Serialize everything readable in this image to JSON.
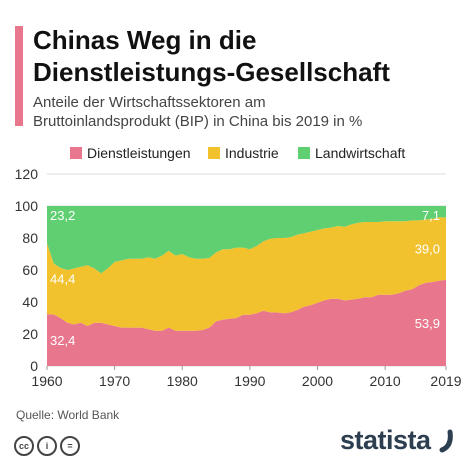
{
  "header": {
    "title_line1": "Chinas Weg in die",
    "title_line2": "Dienstleistungs-Gesellschaft",
    "subtitle_line1": "Anteile der Wirtschaftssektoren am",
    "subtitle_line2": "Bruttoinlandsprodukt (BIP) in China bis 2019 in %"
  },
  "footer": {
    "source": "Quelle: World Bank",
    "license_icons": [
      "cc",
      "i",
      "="
    ],
    "brand": "statista"
  },
  "colors": {
    "Dienstleistungen": "#e8778d",
    "Industrie": "#f2c12e",
    "Landwirtschaft": "#5fcf72",
    "grid": "#dddddd",
    "axis_text": "#333333",
    "accent": "#e8778d",
    "brand": "#2d3e50"
  },
  "chart_data": {
    "type": "area",
    "stacked": true,
    "title": "Chinas Weg in die Dienstleistungs-Gesellschaft",
    "subtitle": "Anteile der Wirtschaftssektoren am Bruttoinlandsprodukt (BIP) in China bis 2019 in %",
    "xlabel": "",
    "ylabel": "",
    "xlim": [
      1960,
      2019
    ],
    "ylim": [
      0,
      120
    ],
    "x_ticks": [
      1960,
      1970,
      1980,
      1990,
      2000,
      2010,
      2019
    ],
    "y_ticks": [
      0,
      20,
      40,
      60,
      80,
      100,
      120
    ],
    "grid": true,
    "legend_position": "top",
    "x": [
      1960,
      1961,
      1962,
      1963,
      1964,
      1965,
      1966,
      1967,
      1968,
      1969,
      1970,
      1971,
      1972,
      1973,
      1974,
      1975,
      1976,
      1977,
      1978,
      1979,
      1980,
      1981,
      1982,
      1983,
      1984,
      1985,
      1986,
      1987,
      1988,
      1989,
      1990,
      1991,
      1992,
      1993,
      1994,
      1995,
      1996,
      1997,
      1998,
      1999,
      2000,
      2001,
      2002,
      2003,
      2004,
      2005,
      2006,
      2007,
      2008,
      2009,
      2010,
      2011,
      2012,
      2013,
      2014,
      2015,
      2016,
      2017,
      2018,
      2019
    ],
    "series": [
      {
        "name": "Dienstleistungen",
        "values": [
          32.4,
          32.2,
          30.0,
          27.0,
          26.0,
          27.0,
          25.0,
          27.0,
          27.0,
          26.0,
          25.0,
          24.0,
          24.0,
          24.0,
          24.0,
          23.0,
          22.0,
          22.0,
          24.0,
          22.0,
          22.0,
          22.0,
          22.0,
          22.5,
          24.0,
          28.0,
          29.0,
          29.5,
          30.0,
          32.0,
          32.0,
          33.0,
          34.5,
          33.5,
          33.5,
          33.0,
          33.5,
          35.0,
          37.0,
          38.0,
          39.5,
          41.0,
          42.0,
          42.0,
          41.0,
          41.5,
          42.0,
          43.0,
          43.0,
          44.5,
          44.5,
          44.5,
          45.5,
          47.0,
          48.0,
          50.5,
          52.0,
          52.5,
          53.3,
          53.9
        ]
      },
      {
        "name": "Industrie",
        "values": [
          44.4,
          31.9,
          31.3,
          33.0,
          35.0,
          35.0,
          38.0,
          34.0,
          31.0,
          35.0,
          40.0,
          42.0,
          43.0,
          43.0,
          43.0,
          45.0,
          45.0,
          47.0,
          48.0,
          47.0,
          48.0,
          46.0,
          45.0,
          44.5,
          43.5,
          43.0,
          44.0,
          43.5,
          44.0,
          42.0,
          41.0,
          42.0,
          43.5,
          46.0,
          46.5,
          47.0,
          47.0,
          47.0,
          46.0,
          46.0,
          45.5,
          45.0,
          44.5,
          45.5,
          46.0,
          47.0,
          47.5,
          47.0,
          47.0,
          45.5,
          46.0,
          46.0,
          45.0,
          43.5,
          43.0,
          40.5,
          39.5,
          39.5,
          39.7,
          39.0
        ]
      },
      {
        "name": "Landwirtschaft",
        "values": [
          23.2,
          35.9,
          38.7,
          40.0,
          39.0,
          38.0,
          37.0,
          39.0,
          42.0,
          39.0,
          35.0,
          34.0,
          33.0,
          33.0,
          33.0,
          32.0,
          33.0,
          31.0,
          28.0,
          31.0,
          30.0,
          32.0,
          33.0,
          33.0,
          32.5,
          29.0,
          27.0,
          27.0,
          26.0,
          26.0,
          27.0,
          25.0,
          22.0,
          20.5,
          20.0,
          20.0,
          19.5,
          18.0,
          17.0,
          16.0,
          15.0,
          14.0,
          13.5,
          12.5,
          13.0,
          11.5,
          10.5,
          10.0,
          10.0,
          10.0,
          9.5,
          9.5,
          9.5,
          9.5,
          9.0,
          9.0,
          8.5,
          8.0,
          7.0,
          7.1
        ]
      }
    ],
    "data_labels": [
      {
        "series": "Landwirtschaft",
        "x": 1960,
        "text": "23,2"
      },
      {
        "series": "Industrie",
        "x": 1960,
        "text": "44,4"
      },
      {
        "series": "Dienstleistungen",
        "x": 1960,
        "text": "32,4"
      },
      {
        "series": "Landwirtschaft",
        "x": 2019,
        "text": "7,1"
      },
      {
        "series": "Industrie",
        "x": 2019,
        "text": "39,0"
      },
      {
        "series": "Dienstleistungen",
        "x": 2019,
        "text": "53,9"
      }
    ]
  }
}
